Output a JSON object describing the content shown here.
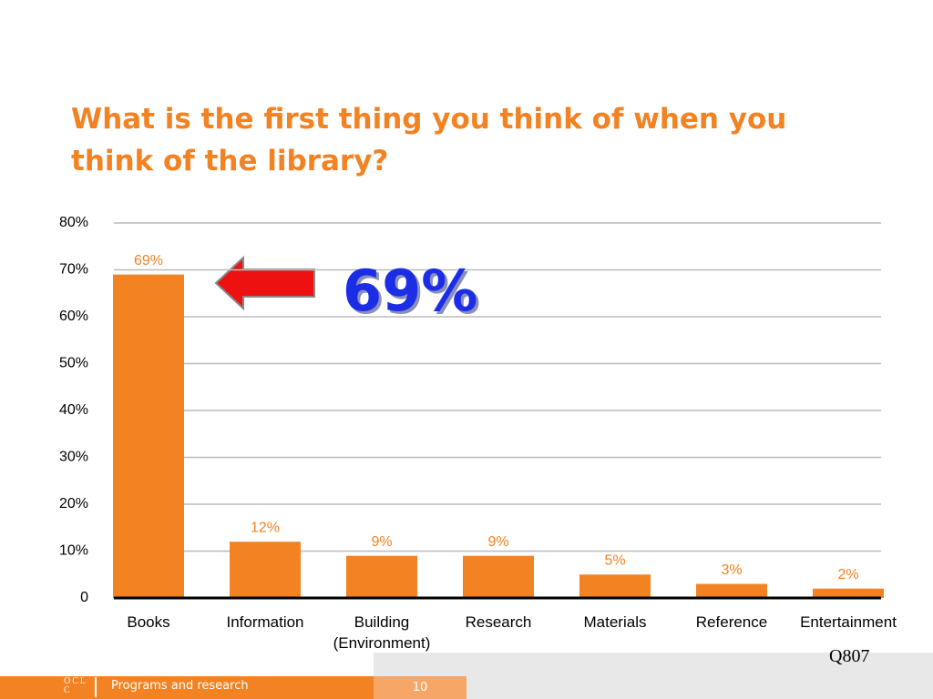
{
  "chart_data": {
    "type": "bar",
    "title": "What is the first thing you think of when you think of the library?",
    "categories": [
      "Books",
      "Information",
      "Building (Environment)",
      "Research",
      "Materials",
      "Reference",
      "Entertainment"
    ],
    "values": [
      69,
      12,
      9,
      9,
      5,
      3,
      2
    ],
    "value_labels": [
      "69%",
      "12%",
      "9%",
      "9%",
      "5%",
      "3%",
      "2%"
    ],
    "color": "#f28222",
    "ylim": [
      0,
      80
    ],
    "yticks": [
      0,
      {
        "value": 10,
        "label": "10%"
      },
      {
        "value": 20,
        "label": "20%"
      },
      {
        "value": 30,
        "label": "30%"
      },
      {
        "value": 40,
        "label": "40%"
      },
      {
        "value": 50,
        "label": "50%"
      },
      {
        "value": 60,
        "label": "60%"
      },
      {
        "value": 70,
        "label": "70%"
      },
      {
        "value": 80,
        "label": "80%"
      }
    ],
    "grid": true,
    "annotation": "69%",
    "note": "Q807"
  },
  "footer": {
    "logo": "OCLC",
    "text": "Programs and research",
    "page": 10
  }
}
